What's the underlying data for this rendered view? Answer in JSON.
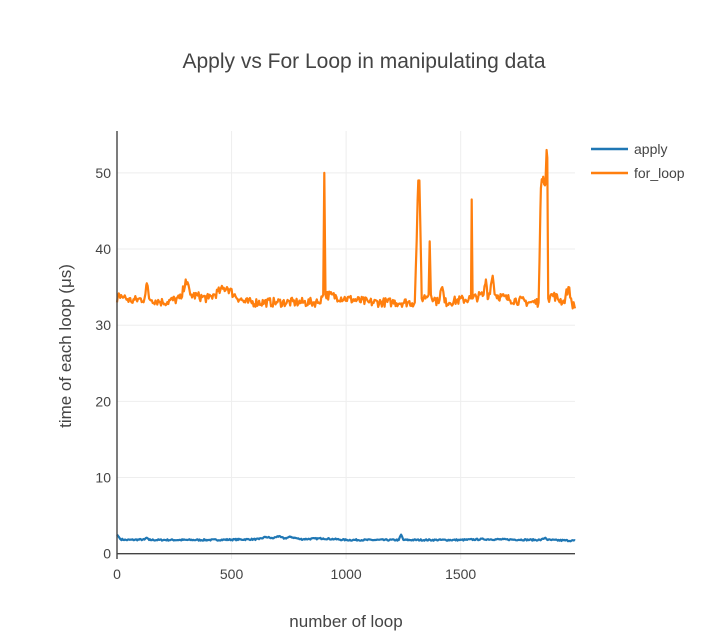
{
  "chart_data": {
    "type": "line",
    "title": "Apply vs For Loop in manipulating data",
    "xlabel": "number of loop",
    "ylabel": "time of each loop (μs)",
    "xlim": [
      0,
      1999
    ],
    "ylim": [
      -0.7,
      55.5
    ],
    "xticks": [
      0,
      500,
      1000,
      1500
    ],
    "yticks": [
      0,
      10,
      20,
      30,
      40,
      50
    ],
    "grid": true,
    "legend_position": "top-right",
    "series": [
      {
        "name": "apply",
        "color": "#1f77b4",
        "baseline": 1.8,
        "noise": 0.1,
        "points": [
          [
            0,
            2.5
          ],
          [
            8,
            2.2
          ],
          [
            15,
            1.9
          ],
          [
            40,
            1.8
          ],
          [
            120,
            1.85
          ],
          [
            130,
            2.1
          ],
          [
            140,
            1.8
          ],
          [
            400,
            1.8
          ],
          [
            620,
            1.9
          ],
          [
            650,
            2.2
          ],
          [
            680,
            2.0
          ],
          [
            700,
            2.3
          ],
          [
            730,
            2.0
          ],
          [
            760,
            2.2
          ],
          [
            800,
            1.9
          ],
          [
            900,
            2.0
          ],
          [
            950,
            1.9
          ],
          [
            1000,
            1.8
          ],
          [
            1230,
            1.8
          ],
          [
            1240,
            2.5
          ],
          [
            1250,
            1.8
          ],
          [
            1500,
            1.8
          ],
          [
            1600,
            1.9
          ],
          [
            1850,
            1.8
          ],
          [
            1870,
            2.1
          ],
          [
            1880,
            1.8
          ],
          [
            1999,
            1.7
          ]
        ]
      },
      {
        "name": "for_loop",
        "color": "#ff7f0e",
        "baseline": 33,
        "noise": 0.6,
        "points": [
          [
            0,
            33.0
          ],
          [
            10,
            34.0
          ],
          [
            60,
            33.2
          ],
          [
            120,
            33.5
          ],
          [
            130,
            35.5
          ],
          [
            140,
            33.5
          ],
          [
            200,
            33.0
          ],
          [
            280,
            33.5
          ],
          [
            300,
            36.0
          ],
          [
            320,
            34.0
          ],
          [
            400,
            33.5
          ],
          [
            450,
            34.5
          ],
          [
            480,
            35.0
          ],
          [
            510,
            34.0
          ],
          [
            560,
            33.0
          ],
          [
            700,
            33.0
          ],
          [
            780,
            33.0
          ],
          [
            880,
            33.0
          ],
          [
            900,
            34.0
          ],
          [
            905,
            50.0
          ],
          [
            910,
            34.0
          ],
          [
            1000,
            33.5
          ],
          [
            1100,
            33.0
          ],
          [
            1200,
            33.0
          ],
          [
            1300,
            33.0
          ],
          [
            1315,
            49.0
          ],
          [
            1320,
            49.0
          ],
          [
            1330,
            33.5
          ],
          [
            1360,
            34.0
          ],
          [
            1365,
            41.0
          ],
          [
            1370,
            34.0
          ],
          [
            1400,
            33.0
          ],
          [
            1420,
            35.0
          ],
          [
            1430,
            33.0
          ],
          [
            1545,
            33.5
          ],
          [
            1548,
            46.5
          ],
          [
            1552,
            33.5
          ],
          [
            1600,
            34.0
          ],
          [
            1610,
            36.0
          ],
          [
            1620,
            33.5
          ],
          [
            1640,
            36.5
          ],
          [
            1650,
            34.0
          ],
          [
            1700,
            33.5
          ],
          [
            1800,
            33.0
          ],
          [
            1840,
            33.0
          ],
          [
            1850,
            48.0
          ],
          [
            1860,
            49.5
          ],
          [
            1870,
            48.5
          ],
          [
            1875,
            53.0
          ],
          [
            1878,
            52.0
          ],
          [
            1882,
            33.5
          ],
          [
            1900,
            34.0
          ],
          [
            1950,
            33.0
          ],
          [
            1970,
            35.0
          ],
          [
            1985,
            33.0
          ],
          [
            1999,
            32.2
          ]
        ]
      }
    ]
  }
}
